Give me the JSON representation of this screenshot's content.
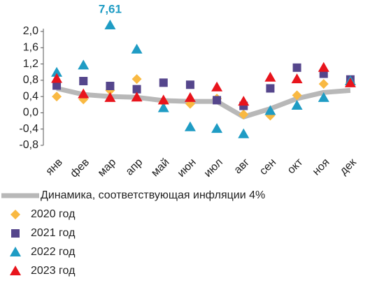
{
  "chart_data": {
    "type": "line",
    "categories": [
      "янв",
      "фев",
      "мар",
      "апр",
      "май",
      "июн",
      "июл",
      "авг",
      "сен",
      "окт",
      "ноя",
      "дек"
    ],
    "ylim": [
      -0.8,
      2.0
    ],
    "yticks": [
      {
        "value": -0.8,
        "label": "-0,8"
      },
      {
        "value": -0.4,
        "label": "-0,4"
      },
      {
        "value": 0,
        "label": "0,0"
      },
      {
        "value": 0.4,
        "label": "0,4"
      },
      {
        "value": 0.8,
        "label": "0,8"
      },
      {
        "value": 1.2,
        "label": "1,2"
      },
      {
        "value": 1.6,
        "label": "1,6"
      },
      {
        "value": 2.0,
        "label": "2,0"
      }
    ],
    "grid": false,
    "series": [
      {
        "name": "Динамика, соответствующая инфляции 4%",
        "color": "#b8b8b8",
        "marker": "line",
        "values": [
          0.6,
          0.45,
          0.4,
          0.38,
          0.3,
          0.28,
          0.28,
          -0.1,
          0.1,
          0.35,
          0.5,
          0.55
        ]
      },
      {
        "name": "2020 год",
        "color": "#f9b942",
        "marker": "diamond",
        "values": [
          0.4,
          0.33,
          0.55,
          0.83,
          0.27,
          0.22,
          0.35,
          -0.04,
          -0.07,
          0.43,
          0.71,
          0.75
        ]
      },
      {
        "name": "2021 год",
        "color": "#55468c",
        "marker": "square",
        "values": [
          0.67,
          0.78,
          0.66,
          0.58,
          0.74,
          0.69,
          0.31,
          0.17,
          0.6,
          1.11,
          0.96,
          0.82
        ]
      },
      {
        "name": "2022 год",
        "color": "#1f9cc4",
        "marker": "triangle",
        "values": [
          0.99,
          1.17,
          7.61,
          1.56,
          0.12,
          -0.35,
          -0.39,
          -0.52,
          0.05,
          0.18,
          0.37,
          0.78
        ],
        "value_labels": [
          null,
          null,
          "7,61",
          null,
          null,
          null,
          null,
          null,
          null,
          null,
          null,
          null
        ]
      },
      {
        "name": "2023 год",
        "color": "#e8141c",
        "marker": "triangle",
        "values": [
          0.84,
          0.46,
          0.37,
          0.38,
          0.31,
          0.37,
          0.63,
          0.28,
          0.87,
          0.83,
          1.11,
          0.73
        ]
      }
    ]
  }
}
